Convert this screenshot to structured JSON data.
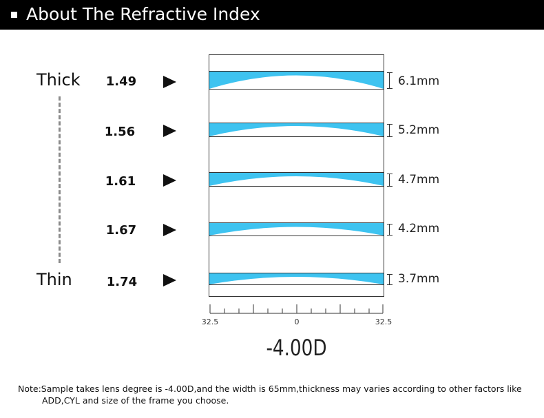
{
  "header": {
    "title": "About The Refractive Index"
  },
  "labels": {
    "thick": "Thick",
    "thin": "Thin"
  },
  "lenses": [
    {
      "index": "1.49",
      "thickness": "6.1mm"
    },
    {
      "index": "1.56",
      "thickness": "5.2mm"
    },
    {
      "index": "1.61",
      "thickness": "4.7mm"
    },
    {
      "index": "1.67",
      "thickness": "4.2mm"
    },
    {
      "index": "1.74",
      "thickness": "3.7mm"
    }
  ],
  "ruler": {
    "left": "32.5",
    "center": "0",
    "right": "32.5"
  },
  "diopter": "-4.00D",
  "note": {
    "line1": "Note:Sample takes lens degree is -4.00D,and the width is 65mm,thickness may varies according to other factors like",
    "line2": "ADD,CYL and size of the frame you choose."
  },
  "colors": {
    "lens_blue": "#3ec3f0",
    "header_bg": "#000000"
  }
}
